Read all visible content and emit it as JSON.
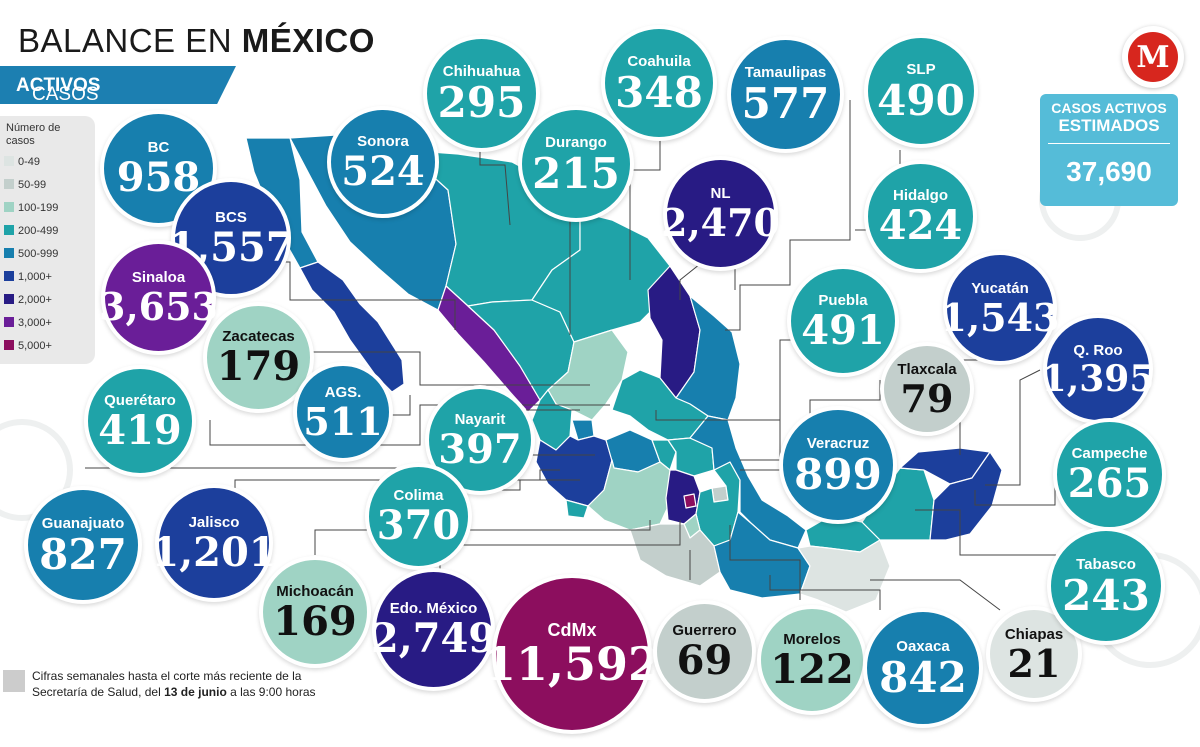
{
  "header": {
    "title_part1": "BALANCE EN ",
    "title_part2": "MÉXICO",
    "subtitle_part1": "CASOS ",
    "subtitle_part2": "ACTIVOS"
  },
  "legend": {
    "title": "Número de casos",
    "items": [
      {
        "label": "0-49",
        "color": "#dde4e2"
      },
      {
        "label": "50-99",
        "color": "#c3cfcc"
      },
      {
        "label": "100-199",
        "color": "#9fd3c4"
      },
      {
        "label": "200-499",
        "color": "#1fa3a8"
      },
      {
        "label": "500-999",
        "color": "#177fae"
      },
      {
        "label": "1,000+",
        "color": "#1c3f9c"
      },
      {
        "label": "2,000+",
        "color": "#281b84"
      },
      {
        "label": "3,000+",
        "color": "#6a1e98"
      },
      {
        "label": "5,000+",
        "color": "#8c0e5e"
      }
    ]
  },
  "estimated": {
    "label_line1": "CASOS ACTIVOS",
    "label_line2": "ESTIMADOS",
    "value": "37,690"
  },
  "logo": {
    "letter": "M",
    "color": "#d7261e"
  },
  "footnote": {
    "line1": "Cifras semanales hasta el corte más reciente de la",
    "line2_a": "Secretaría de Salud, del ",
    "line2_b": "13 de junio",
    "line2_c": " a las 9:00 horas"
  },
  "states": [
    {
      "id": "bc",
      "name": "BC",
      "value": "958",
      "value_num": 958,
      "color": "#177fae"
    },
    {
      "id": "bcs",
      "name": "BCS",
      "value": "1,557",
      "value_num": 1557,
      "color": "#1c3f9c"
    },
    {
      "id": "sinaloa",
      "name": "Sinaloa",
      "value": "3,653",
      "value_num": 3653,
      "color": "#6a1e98"
    },
    {
      "id": "zacatecas",
      "name": "Zacatecas",
      "value": "179",
      "value_num": 179,
      "color": "#9fd3c4"
    },
    {
      "id": "sonora",
      "name": "Sonora",
      "value": "524",
      "value_num": 524,
      "color": "#177fae"
    },
    {
      "id": "chihuahua",
      "name": "Chihuahua",
      "value": "295",
      "value_num": 295,
      "color": "#1fa3a8"
    },
    {
      "id": "coahuila",
      "name": "Coahuila",
      "value": "348",
      "value_num": 348,
      "color": "#1fa3a8"
    },
    {
      "id": "durango",
      "name": "Durango",
      "value": "215",
      "value_num": 215,
      "color": "#1fa3a8"
    },
    {
      "id": "tamaulipas",
      "name": "Tamaulipas",
      "value": "577",
      "value_num": 577,
      "color": "#177fae"
    },
    {
      "id": "slp",
      "name": "SLP",
      "value": "490",
      "value_num": 490,
      "color": "#1fa3a8"
    },
    {
      "id": "nl",
      "name": "NL",
      "value": "2,470",
      "value_num": 2470,
      "color": "#281b84"
    },
    {
      "id": "hidalgo",
      "name": "Hidalgo",
      "value": "424",
      "value_num": 424,
      "color": "#1fa3a8"
    },
    {
      "id": "puebla",
      "name": "Puebla",
      "value": "491",
      "value_num": 491,
      "color": "#1fa3a8"
    },
    {
      "id": "yucatan",
      "name": "Yucatán",
      "value": "1,543",
      "value_num": 1543,
      "color": "#1c3f9c"
    },
    {
      "id": "qroo",
      "name": "Q. Roo",
      "value": "1,395",
      "value_num": 1395,
      "color": "#1c3f9c"
    },
    {
      "id": "tlaxcala",
      "name": "Tlaxcala",
      "value": "79",
      "value_num": 79,
      "color": "#c3cfcc"
    },
    {
      "id": "queretaro",
      "name": "Querétaro",
      "value": "419",
      "value_num": 419,
      "color": "#1fa3a8"
    },
    {
      "id": "ags",
      "name": "AGS.",
      "value": "511",
      "value_num": 511,
      "color": "#177fae"
    },
    {
      "id": "nayarit",
      "name": "Nayarit",
      "value": "397",
      "value_num": 397,
      "color": "#1fa3a8"
    },
    {
      "id": "veracruz",
      "name": "Veracruz",
      "value": "899",
      "value_num": 899,
      "color": "#177fae"
    },
    {
      "id": "campeche",
      "name": "Campeche",
      "value": "265",
      "value_num": 265,
      "color": "#1fa3a8"
    },
    {
      "id": "guanajuato",
      "name": "Guanajuato",
      "value": "827",
      "value_num": 827,
      "color": "#177fae"
    },
    {
      "id": "jalisco",
      "name": "Jalisco",
      "value": "1,201",
      "value_num": 1201,
      "color": "#1c3f9c"
    },
    {
      "id": "colima",
      "name": "Colima",
      "value": "370",
      "value_num": 370,
      "color": "#1fa3a8"
    },
    {
      "id": "michoacan",
      "name": "Michoacán",
      "value": "169",
      "value_num": 169,
      "color": "#9fd3c4"
    },
    {
      "id": "edomex",
      "name": "Edo. México",
      "value": "2,749",
      "value_num": 2749,
      "color": "#281b84"
    },
    {
      "id": "cdmx",
      "name": "CdMx",
      "value": "11,592",
      "value_num": 11592,
      "color": "#8c0e5e"
    },
    {
      "id": "guerrero",
      "name": "Guerrero",
      "value": "69",
      "value_num": 69,
      "color": "#c3cfcc"
    },
    {
      "id": "morelos",
      "name": "Morelos",
      "value": "122",
      "value_num": 122,
      "color": "#9fd3c4"
    },
    {
      "id": "oaxaca",
      "name": "Oaxaca",
      "value": "842",
      "value_num": 842,
      "color": "#177fae"
    },
    {
      "id": "chiapas",
      "name": "Chiapas",
      "value": "21",
      "value_num": 21,
      "color": "#dde4e2"
    },
    {
      "id": "tabasco",
      "name": "Tabasco",
      "value": "243",
      "value_num": 243,
      "color": "#1fa3a8"
    }
  ]
}
